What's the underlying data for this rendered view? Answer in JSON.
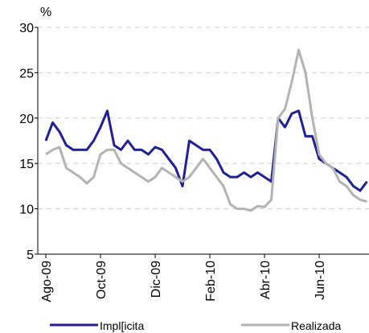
{
  "chart_data": {
    "type": "line",
    "y_label": "%",
    "categories": [
      "Ago-09",
      null,
      null,
      null,
      null,
      null,
      null,
      null,
      "Oct-09",
      null,
      null,
      null,
      null,
      null,
      null,
      null,
      "Dic-09",
      null,
      null,
      null,
      null,
      null,
      null,
      null,
      "Feb-10",
      null,
      null,
      null,
      null,
      null,
      null,
      null,
      "Abr-10",
      null,
      null,
      null,
      null,
      null,
      null,
      null,
      "Jun-10",
      null,
      null,
      null,
      null,
      null,
      null,
      null
    ],
    "series": [
      {
        "name": "Impl[icita",
        "color": "#1f1f99",
        "values": [
          17.5,
          19.5,
          18.5,
          17,
          16.5,
          16.5,
          16.5,
          17.5,
          19,
          20.8,
          17,
          16.5,
          17.5,
          16.5,
          16.5,
          16,
          16.8,
          16.5,
          15.5,
          14.5,
          12.5,
          17.5,
          17,
          16.5,
          16.5,
          15.5,
          14,
          13.5,
          13.5,
          14,
          13.5,
          14,
          13.5,
          13,
          20,
          19,
          20.5,
          20.8,
          18,
          18,
          15.5,
          15,
          14.5,
          14,
          13.5,
          12.5,
          12,
          13
        ]
      },
      {
        "name": "Realizada",
        "color": "#b3b3b3",
        "values": [
          16,
          16.5,
          16.8,
          14.5,
          14,
          13.5,
          12.8,
          13.5,
          16,
          16.5,
          16.5,
          15,
          14.5,
          14,
          13.5,
          13,
          13.5,
          14.5,
          14,
          13.5,
          13,
          13.5,
          14.5,
          15.5,
          14.5,
          13.5,
          12.5,
          10.5,
          10,
          10,
          9.8,
          10.3,
          10.2,
          11,
          20,
          21,
          24,
          27.5,
          25,
          20,
          16,
          15,
          14.5,
          13,
          12.5,
          11.5,
          11,
          10.8
        ]
      }
    ],
    "ylim": [
      5,
      30
    ],
    "yticks": [
      5,
      10,
      15,
      20,
      25,
      30
    ],
    "grid": true,
    "legend": "bottom"
  }
}
